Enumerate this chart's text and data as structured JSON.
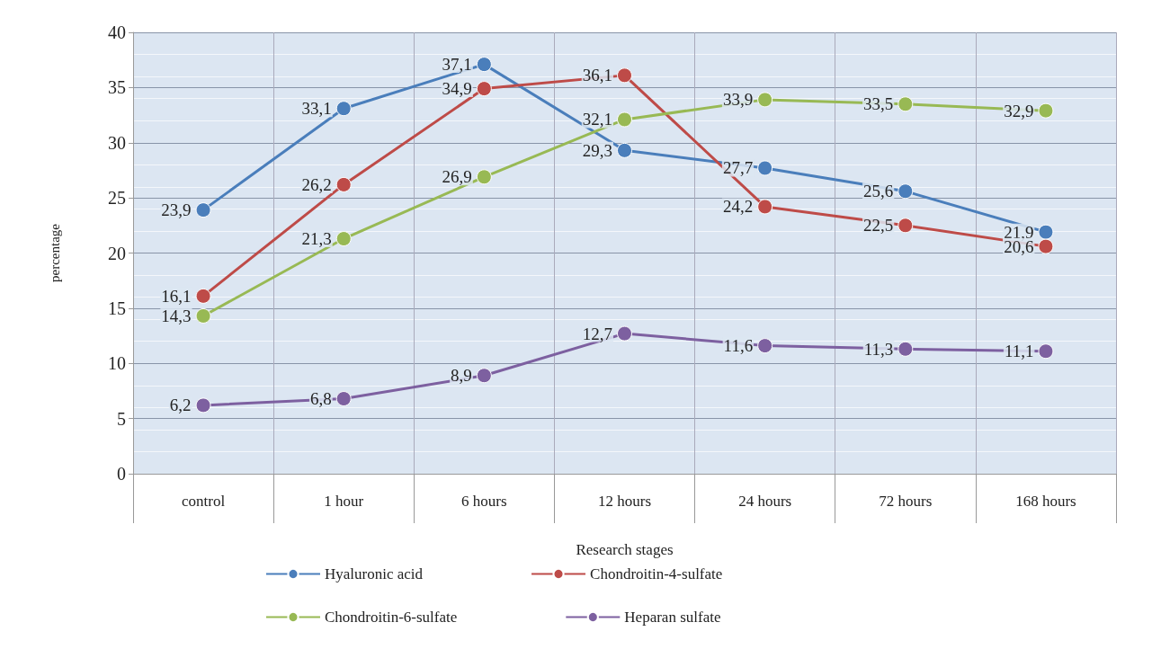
{
  "chart_data": {
    "type": "line",
    "xlabel": "Research stages",
    "ylabel": "percentage",
    "categories": [
      "control",
      "1 hour",
      "6 hours",
      "12 hours",
      "24 hours",
      "72 hours",
      "168 hours"
    ],
    "series": [
      {
        "name": "Hyaluronic acid",
        "color": "#4a7ebb",
        "values": [
          23.9,
          33.1,
          37.1,
          29.3,
          27.7,
          25.6,
          21.9
        ],
        "value_labels": [
          "23,9",
          "33,1",
          "37,1",
          "29,3",
          "27,7",
          "25,6",
          "21,9"
        ]
      },
      {
        "name": "Chondroitin-4-sulfate",
        "color": "#be4b48",
        "values": [
          16.1,
          26.2,
          34.9,
          36.1,
          24.2,
          22.5,
          20.6
        ],
        "value_labels": [
          "16,1",
          "26,2",
          "34,9",
          "36,1",
          "24,2",
          "22,5",
          "20,6"
        ]
      },
      {
        "name": "Chondroitin-6-sulfate",
        "color": "#98b954",
        "values": [
          14.3,
          21.3,
          26.9,
          32.1,
          33.9,
          33.5,
          32.9
        ],
        "value_labels": [
          "14,3",
          "21,3",
          "26,9",
          "32,1",
          "33,9",
          "33,5",
          "32,9"
        ]
      },
      {
        "name": "Heparan sulfate",
        "color": "#7d60a0",
        "values": [
          6.2,
          6.8,
          8.9,
          12.7,
          11.6,
          11.3,
          11.1
        ],
        "value_labels": [
          "6,2",
          "6,8",
          "8,9",
          "12,7",
          "11,6",
          "11,3",
          "11,1"
        ]
      }
    ],
    "ylim": [
      0,
      40
    ],
    "yticks": [
      0,
      5,
      10,
      15,
      20,
      25,
      30,
      35,
      40
    ],
    "grid": true,
    "legend": "bottom",
    "marker": "circle",
    "line_style": "solid"
  }
}
